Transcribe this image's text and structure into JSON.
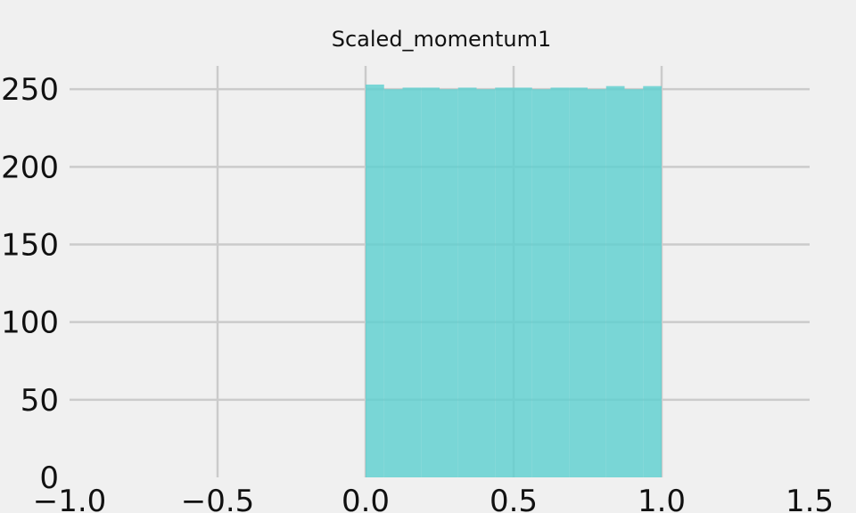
{
  "chart_data": {
    "type": "bar",
    "title": "Scaled_momentum1",
    "xlabel": "",
    "ylabel": "",
    "xlim": [
      -1.0,
      1.5
    ],
    "ylim": [
      0,
      265
    ],
    "x_ticks": [
      -1.0,
      -0.5,
      0.0,
      0.5,
      1.0,
      1.5
    ],
    "x_tick_labels": [
      "−1.0",
      "−0.5",
      "0.0",
      "0.5",
      "1.0",
      "1.5"
    ],
    "y_ticks": [
      0,
      50,
      100,
      150,
      200,
      250
    ],
    "y_tick_labels": [
      "0",
      "50",
      "100",
      "150",
      "200",
      "250"
    ],
    "grid": true,
    "bar_color": "#5ecfcf",
    "bin_edges": [
      0.0,
      0.0625,
      0.125,
      0.1875,
      0.25,
      0.3125,
      0.375,
      0.4375,
      0.5,
      0.5625,
      0.625,
      0.6875,
      0.75,
      0.8125,
      0.875,
      0.9375,
      1.0
    ],
    "values": [
      253,
      250,
      251,
      251,
      250,
      251,
      250,
      251,
      251,
      250,
      251,
      251,
      250,
      252,
      250,
      252
    ]
  }
}
